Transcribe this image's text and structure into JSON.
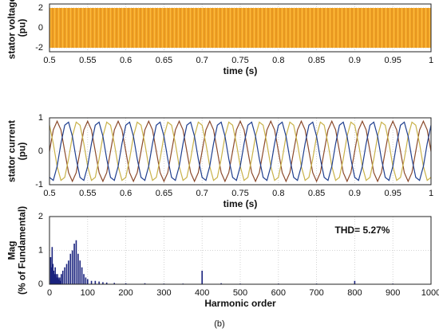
{
  "chart_data": [
    {
      "type": "band",
      "ylabel": [
        "stator voltage",
        "(pu)"
      ],
      "xlabel": "time (s)",
      "x": [
        0.5,
        1
      ],
      "lower": [
        -2,
        -2
      ],
      "upper": [
        2,
        2
      ],
      "color": "#f5a623",
      "xlim": [
        0.5,
        1
      ],
      "xticks": [
        0.5,
        0.55,
        0.6,
        0.65,
        0.7,
        0.75,
        0.8,
        0.85,
        0.9,
        0.95,
        1
      ],
      "ylim": [
        -2.4,
        2.4
      ],
      "yticks": [
        -2,
        0,
        2
      ],
      "grid": true
    },
    {
      "type": "line",
      "ylabel": [
        "stator current",
        "(pu)"
      ],
      "xlabel": "time (s)",
      "x": [
        0.5,
        0.505,
        0.51,
        0.515,
        0.52,
        0.525,
        0.53,
        0.535,
        0.54,
        0.545,
        0.55,
        0.555,
        0.56,
        0.565,
        0.57,
        0.575,
        0.58,
        0.585,
        0.59,
        0.595,
        0.6,
        0.605,
        0.61,
        0.615,
        0.62,
        0.625,
        0.63,
        0.635,
        0.64,
        0.645,
        0.65,
        0.655,
        0.66,
        0.665,
        0.67,
        0.675,
        0.68,
        0.685,
        0.69,
        0.695,
        0.7,
        0.705,
        0.71,
        0.715,
        0.72,
        0.725,
        0.73,
        0.735,
        0.74,
        0.745,
        0.75,
        0.755,
        0.76,
        0.765,
        0.77,
        0.775,
        0.78,
        0.785,
        0.79,
        0.795,
        0.8,
        0.805,
        0.81,
        0.815,
        0.82,
        0.825,
        0.83,
        0.835,
        0.84,
        0.845,
        0.85,
        0.855,
        0.86,
        0.865,
        0.87,
        0.875,
        0.88,
        0.885,
        0.89,
        0.895,
        0.9,
        0.905,
        0.91,
        0.915,
        0.92,
        0.925,
        0.93,
        0.935,
        0.94,
        0.945,
        0.95,
        0.955,
        0.96,
        0.965,
        0.97,
        0.975,
        0.98,
        0.985,
        0.99,
        0.995,
        1
      ],
      "series": [
        {
          "color": "#8b4a2b",
          "values": [
            0,
            0.64,
            0.9,
            0.64,
            0,
            -0.64,
            -0.9,
            -0.64,
            0,
            0.64,
            0.9,
            0.64,
            0,
            -0.64,
            -0.9,
            -0.64,
            0,
            0.64,
            0.9,
            0.64,
            0,
            -0.64,
            -0.9,
            -0.64,
            0,
            0.64,
            0.9,
            0.64,
            0,
            -0.64,
            -0.9,
            -0.64,
            0,
            0.64,
            0.9,
            0.64,
            0,
            -0.64,
            -0.9,
            -0.64,
            0,
            0.64,
            0.9,
            0.64,
            0,
            -0.64,
            -0.9,
            -0.64,
            0,
            0.64,
            0.9,
            0.64,
            0,
            -0.64,
            -0.9,
            -0.64,
            0,
            0.64,
            0.9,
            0.64,
            0,
            -0.64,
            -0.9,
            -0.64,
            0,
            0.64,
            0.9,
            0.64,
            0,
            -0.64,
            -0.9,
            -0.64,
            0,
            0.64,
            0.9,
            0.64,
            0,
            -0.64,
            -0.9,
            -0.64,
            0,
            0.64,
            0.9,
            0.64,
            0,
            -0.64,
            -0.9,
            -0.64,
            0,
            0.64,
            0.9,
            0.64,
            0,
            -0.64,
            -0.9,
            -0.64,
            0,
            0.64,
            0.9,
            0.64,
            0
          ]
        },
        {
          "color": "#c9b24a",
          "values": [
            0.78,
            0.23,
            -0.45,
            -0.87,
            -0.78,
            -0.23,
            0.45,
            0.87,
            0.78,
            0.23,
            -0.45,
            -0.87,
            -0.78,
            -0.23,
            0.45,
            0.87,
            0.78,
            0.23,
            -0.45,
            -0.87,
            -0.78,
            -0.23,
            0.45,
            0.87,
            0.78,
            0.23,
            -0.45,
            -0.87,
            -0.78,
            -0.23,
            0.45,
            0.87,
            0.78,
            0.23,
            -0.45,
            -0.87,
            -0.78,
            -0.23,
            0.45,
            0.87,
            0.78,
            0.23,
            -0.45,
            -0.87,
            -0.78,
            -0.23,
            0.45,
            0.87,
            0.78,
            0.23,
            -0.45,
            -0.87,
            -0.78,
            -0.23,
            0.45,
            0.87,
            0.78,
            0.23,
            -0.45,
            -0.87,
            -0.78,
            -0.23,
            0.45,
            0.87,
            0.78,
            0.23,
            -0.45,
            -0.87,
            -0.78,
            -0.23,
            0.45,
            0.87,
            0.78,
            0.23,
            -0.45,
            -0.87,
            -0.78,
            -0.23,
            0.45,
            0.87,
            0.78,
            0.23,
            -0.45,
            -0.87,
            -0.78,
            -0.23,
            0.45,
            0.87,
            0.78,
            0.23,
            -0.45,
            -0.87,
            -0.78,
            -0.23,
            0.45,
            0.87,
            0.78,
            0.23,
            -0.45,
            -0.87,
            -0.78
          ]
        },
        {
          "color": "#1f3f8f",
          "values": [
            -0.78,
            -0.87,
            -0.45,
            0.23,
            0.78,
            0.87,
            0.45,
            -0.23,
            -0.78,
            -0.87,
            -0.45,
            0.23,
            0.78,
            0.87,
            0.45,
            -0.23,
            -0.78,
            -0.87,
            -0.45,
            0.23,
            0.78,
            0.87,
            0.45,
            -0.23,
            -0.78,
            -0.87,
            -0.45,
            0.23,
            0.78,
            0.87,
            0.45,
            -0.23,
            -0.78,
            -0.87,
            -0.45,
            0.23,
            0.78,
            0.87,
            0.45,
            -0.23,
            -0.78,
            -0.87,
            -0.45,
            0.23,
            0.78,
            0.87,
            0.45,
            -0.23,
            -0.78,
            -0.87,
            -0.45,
            0.23,
            0.78,
            0.87,
            0.45,
            -0.23,
            -0.78,
            -0.87,
            -0.45,
            0.23,
            0.78,
            0.87,
            0.45,
            -0.23,
            -0.78,
            -0.87,
            -0.45,
            0.23,
            0.78,
            0.87,
            0.45,
            -0.23,
            -0.78,
            -0.87,
            -0.45,
            0.23,
            0.78,
            0.87,
            0.45,
            -0.23,
            -0.78,
            -0.87,
            -0.45,
            0.23,
            0.78,
            0.87,
            0.45,
            -0.23,
            -0.78,
            -0.87,
            -0.45,
            0.23,
            0.78,
            0.87,
            0.45,
            -0.23,
            -0.78,
            -0.87,
            -0.45,
            0.23,
            0.78
          ]
        }
      ],
      "xlim": [
        0.5,
        1
      ],
      "xticks": [
        0.5,
        0.55,
        0.6,
        0.65,
        0.7,
        0.75,
        0.8,
        0.85,
        0.9,
        0.95,
        1
      ],
      "ylim": [
        -1,
        1
      ],
      "yticks": [
        -1,
        0,
        1
      ],
      "grid": true
    },
    {
      "type": "stem",
      "ylabel": [
        "Mag",
        "(% of Fundamental)"
      ],
      "xlabel": "Harmonic order",
      "annotation": "THD= 5.27%",
      "caption": "(b)",
      "color": "#1a237e",
      "x": [
        3,
        5,
        7,
        9,
        11,
        13,
        15,
        17,
        19,
        21,
        23,
        25,
        27,
        29,
        31,
        35,
        40,
        45,
        50,
        55,
        60,
        65,
        70,
        75,
        80,
        85,
        90,
        95,
        100,
        110,
        120,
        130,
        140,
        150,
        170,
        200,
        250,
        300,
        350,
        400,
        450,
        500,
        600,
        700,
        800,
        900
      ],
      "values": [
        0.8,
        0.5,
        1.1,
        0.6,
        0.4,
        0.3,
        0.5,
        0.3,
        0.2,
        0.3,
        0.2,
        0.15,
        0.2,
        0.1,
        0.3,
        0.4,
        0.5,
        0.6,
        0.7,
        0.9,
        1.0,
        1.2,
        1.3,
        0.9,
        0.7,
        0.5,
        0.3,
        0.2,
        0.15,
        0.1,
        0.1,
        0.08,
        0.06,
        0.05,
        0.04,
        0.03,
        0.03,
        0.02,
        0.02,
        0.4,
        0.03,
        0.02,
        0.02,
        0.02,
        0.1,
        0.02
      ],
      "xlim": [
        0,
        1000
      ],
      "xticks": [
        0,
        100,
        200,
        300,
        400,
        500,
        600,
        700,
        800,
        900,
        1000
      ],
      "ylim": [
        0,
        2
      ],
      "yticks": [
        0,
        1,
        2
      ],
      "grid": true
    }
  ]
}
